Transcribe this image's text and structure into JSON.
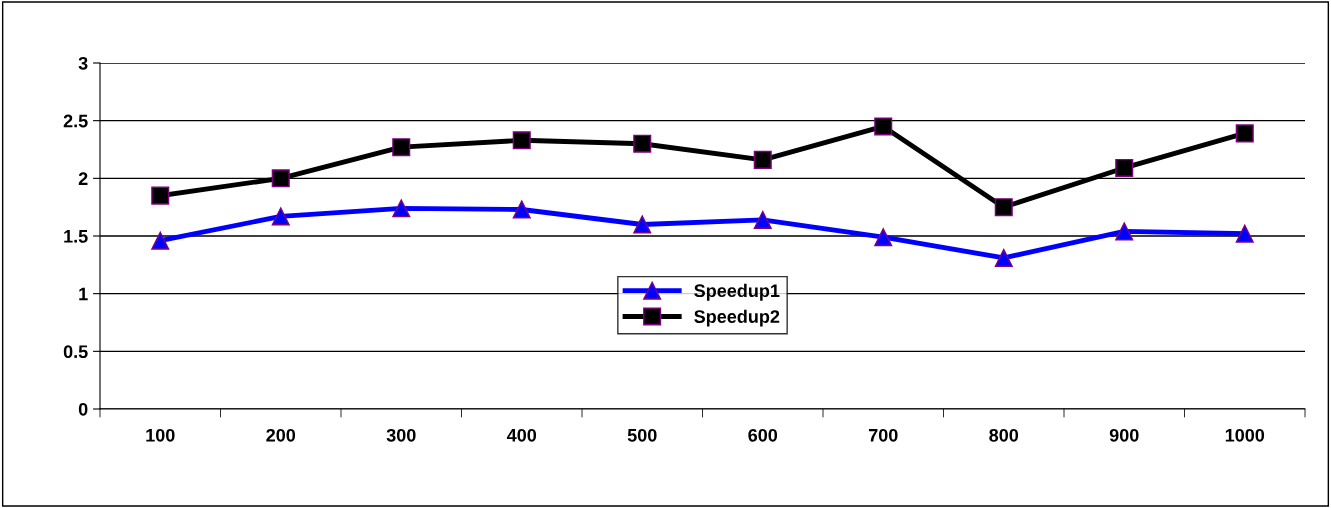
{
  "chart_data": {
    "type": "line",
    "categories": [
      "100",
      "200",
      "300",
      "400",
      "500",
      "600",
      "700",
      "800",
      "900",
      "1000"
    ],
    "series": [
      {
        "name": "Speedup1",
        "color": "#0000ff",
        "marker": "triangle",
        "values": [
          1.46,
          1.67,
          1.74,
          1.73,
          1.6,
          1.64,
          1.49,
          1.31,
          1.54,
          1.52
        ]
      },
      {
        "name": "Speedup2",
        "color": "#000000",
        "marker": "square",
        "values": [
          1.85,
          2.0,
          2.27,
          2.33,
          2.3,
          2.16,
          2.45,
          1.75,
          2.09,
          2.39
        ]
      }
    ],
    "ylim": [
      0,
      3
    ],
    "yticks": [
      0,
      0.5,
      1,
      1.5,
      2,
      2.5,
      3
    ],
    "grid": "y",
    "legend": "center",
    "line_style": "solid"
  }
}
